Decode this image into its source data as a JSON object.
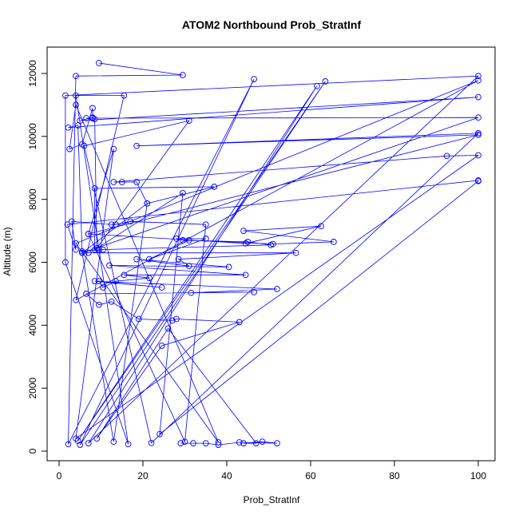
{
  "chart_data": {
    "type": "line",
    "title": "ATOM2 Northbound Prob_StratInf",
    "xlabel": "Prob_StratInf",
    "ylabel": "Altitude (m)",
    "xlim": [
      0,
      100
    ],
    "ylim": [
      0,
      12000
    ],
    "x_ticks": [
      0,
      20,
      40,
      60,
      80,
      100
    ],
    "y_ticks": [
      0,
      2000,
      4000,
      6000,
      8000,
      10000,
      12000
    ],
    "grid": false,
    "marker": "open-circle",
    "color": "#0000ff",
    "series": [
      {
        "points": [
          [
            9.5,
            12330
          ],
          [
            29.5,
            11950
          ],
          [
            4,
            11920
          ],
          [
            2.2,
            220
          ],
          [
            46.5,
            11820
          ],
          [
            5,
            200
          ],
          [
            63.5,
            11750
          ],
          [
            4.5,
            330
          ],
          [
            61.5,
            11600
          ],
          [
            7,
            250
          ],
          [
            100,
            11920
          ],
          [
            1.5,
            11300
          ],
          [
            1.5,
            6000
          ],
          [
            16.5,
            220
          ],
          [
            4,
            11300
          ],
          [
            15.5,
            11300
          ],
          [
            4,
            4800
          ],
          [
            100,
            11780
          ],
          [
            4,
            6600
          ],
          [
            38,
            280
          ],
          [
            4,
            11000
          ],
          [
            2.5,
            9600
          ],
          [
            5.5,
            9750
          ],
          [
            8,
            10900
          ],
          [
            8,
            10600
          ],
          [
            5,
            10500
          ],
          [
            100,
            11250
          ],
          [
            2.2,
            10280
          ],
          [
            4.5,
            10350
          ],
          [
            5.5,
            6300
          ],
          [
            100,
            10600
          ],
          [
            6.5,
            10580
          ],
          [
            8,
            10580
          ],
          [
            8.5,
            10550
          ],
          [
            9,
            6450
          ],
          [
            31,
            10500
          ],
          [
            6,
            9700
          ],
          [
            22,
            260
          ],
          [
            100,
            10100
          ],
          [
            18.5,
            9700
          ],
          [
            100,
            10050
          ],
          [
            7,
            6900
          ],
          [
            13,
            9600
          ],
          [
            4,
            400
          ],
          [
            100,
            9400
          ],
          [
            92.5,
            9380
          ],
          [
            13,
            8550
          ],
          [
            15,
            8550
          ],
          [
            18.5,
            8550
          ],
          [
            21,
            7870
          ],
          [
            5.5,
            6300
          ],
          [
            13,
            300
          ],
          [
            21,
            7870
          ],
          [
            37,
            8400
          ],
          [
            8.5,
            8350
          ],
          [
            8.5,
            6400
          ],
          [
            29.5,
            8200
          ],
          [
            24,
            540
          ],
          [
            100,
            8580
          ],
          [
            100,
            8600
          ],
          [
            2,
            7200
          ],
          [
            4,
            6400
          ],
          [
            3,
            7300
          ],
          [
            12.5,
            7200
          ],
          [
            13.5,
            7200
          ],
          [
            17,
            7300
          ],
          [
            35,
            7200
          ],
          [
            30,
            300
          ],
          [
            7,
            6900
          ],
          [
            44.5,
            6600
          ],
          [
            62.5,
            7150
          ],
          [
            44,
            7000
          ],
          [
            65.5,
            6650
          ],
          [
            51,
            6580
          ],
          [
            31,
            6700
          ],
          [
            21.5,
            6100
          ],
          [
            35,
            6750
          ],
          [
            28,
            6750
          ],
          [
            29.5,
            6700
          ],
          [
            45,
            6650
          ],
          [
            50.5,
            6550
          ],
          [
            9.5,
            6400
          ],
          [
            10.5,
            6400
          ],
          [
            5.5,
            6350
          ],
          [
            7,
            6300
          ],
          [
            56.5,
            6300
          ],
          [
            28.5,
            6100
          ],
          [
            31,
            5880
          ],
          [
            18.5,
            6100
          ],
          [
            40.5,
            5850
          ],
          [
            12,
            5900
          ],
          [
            44.5,
            5600
          ],
          [
            15.5,
            5600
          ],
          [
            21.5,
            5500
          ],
          [
            13.5,
            5400
          ],
          [
            10.5,
            5200
          ],
          [
            9.5,
            5400
          ],
          [
            24.5,
            5200
          ],
          [
            8.5,
            5400
          ],
          [
            52,
            5150
          ],
          [
            31.5,
            5030
          ],
          [
            46.5,
            5050
          ],
          [
            6.5,
            5000
          ],
          [
            9.5,
            4650
          ],
          [
            12.5,
            4750
          ],
          [
            19,
            4200
          ],
          [
            27,
            4150
          ],
          [
            28,
            4200
          ],
          [
            43,
            4100
          ],
          [
            24.5,
            3350
          ],
          [
            9,
            400
          ],
          [
            26,
            3900
          ],
          [
            47,
            250
          ],
          [
            44,
            250
          ],
          [
            48.5,
            300
          ],
          [
            52,
            250
          ],
          [
            43,
            280
          ],
          [
            38,
            200
          ],
          [
            35,
            250
          ],
          [
            32,
            250
          ],
          [
            29,
            250
          ]
        ]
      }
    ]
  }
}
